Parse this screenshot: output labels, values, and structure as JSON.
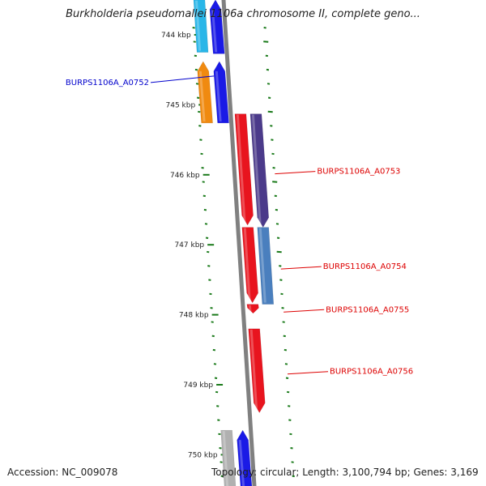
{
  "header": {
    "title": "Burkholderia pseudomallei 1106a chromosome II, complete geno..."
  },
  "footer": {
    "accession": "Accession: NC_009078",
    "summary": "Topology: circular; Length: 3,100,794 bp; Genes: 3,169"
  },
  "colors": {
    "backbone": "#808080",
    "tick": "#1a7a1a",
    "leader_forward": "#0000cc",
    "leader_reverse": "#dd0000"
  },
  "scale": {
    "unit": "kbp",
    "ticks": [
      {
        "kbp": 744,
        "label": "744 kbp"
      },
      {
        "kbp": 745,
        "label": "745 kbp"
      },
      {
        "kbp": 746,
        "label": "746 kbp"
      },
      {
        "kbp": 747,
        "label": "747 kbp"
      },
      {
        "kbp": 748,
        "label": "748 kbp"
      },
      {
        "kbp": 749,
        "label": "749 kbp"
      },
      {
        "kbp": 750,
        "label": "750 kbp"
      }
    ]
  },
  "genes": [
    {
      "name": "",
      "start_kbp": 743.5,
      "end_kbp": 744.25,
      "strand": "forward",
      "track": "outer",
      "color": "#29b6e8",
      "arrow": false
    },
    {
      "name": "",
      "start_kbp": 743.5,
      "end_kbp": 744.27,
      "strand": "forward",
      "track": "inner",
      "color": "#1a1ae6",
      "arrow": true
    },
    {
      "name": "",
      "start_kbp": 744.38,
      "end_kbp": 745.26,
      "strand": "forward",
      "track": "outer",
      "color": "#f08a10",
      "arrow": true
    },
    {
      "name": "BURPS1106A_A0752",
      "start_kbp": 744.38,
      "end_kbp": 745.26,
      "strand": "forward",
      "track": "inner",
      "color": "#1a1ae6",
      "arrow": true
    },
    {
      "name": "",
      "start_kbp": 745.13,
      "end_kbp": 746.72,
      "strand": "reverse",
      "track": "inner",
      "color": "#e8141e",
      "arrow": true
    },
    {
      "name": "BURPS1106A_A0753",
      "start_kbp": 745.13,
      "end_kbp": 746.75,
      "strand": "reverse",
      "track": "outer",
      "color": "#4b3a8a",
      "arrow": true
    },
    {
      "name": "BURPS1106A_A0754",
      "start_kbp": 746.75,
      "end_kbp": 747.85,
      "strand": "reverse",
      "track": "outer",
      "color": "#4a7fbe",
      "arrow": false
    },
    {
      "name": "",
      "start_kbp": 746.75,
      "end_kbp": 747.83,
      "strand": "reverse",
      "track": "inner",
      "color": "#e8141e",
      "arrow": true
    },
    {
      "name": "BURPS1106A_A0755",
      "start_kbp": 747.85,
      "end_kbp": 747.98,
      "strand": "reverse",
      "track": "inner",
      "color": "#e8141e",
      "arrow": true
    },
    {
      "name": "BURPS1106A_A0756",
      "start_kbp": 748.2,
      "end_kbp": 749.4,
      "strand": "reverse",
      "track": "inner",
      "color": "#e8141e",
      "arrow": true
    },
    {
      "name": "",
      "start_kbp": 749.65,
      "end_kbp": 750.5,
      "strand": "forward",
      "track": "outer",
      "color": "#b0b0b0",
      "arrow": false
    },
    {
      "name": "",
      "start_kbp": 749.65,
      "end_kbp": 750.5,
      "strand": "forward",
      "track": "inner",
      "color": "#1a1ae6",
      "arrow": true
    }
  ]
}
